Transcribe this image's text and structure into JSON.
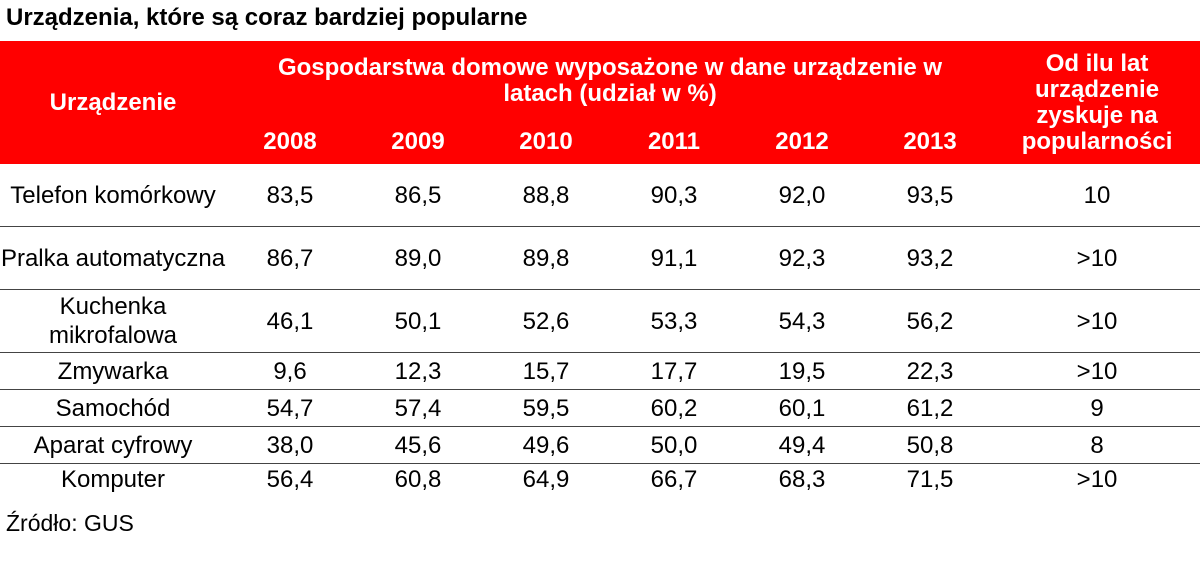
{
  "title": "Urządzenia, które są coraz bardziej popularne",
  "source": "Źródło: GUS",
  "chart_data": {
    "type": "table",
    "title": "Urządzenia, które są coraz bardziej popularne",
    "header": {
      "device": "Urządzenie",
      "share_group": "Gospodarstwa domowe wyposażone w dane urządzenie w latach (udział w %)",
      "years": [
        "2008",
        "2009",
        "2010",
        "2011",
        "2012",
        "2013"
      ],
      "since": "Od ilu lat urządzenie zyskuje na popularności"
    },
    "rows": [
      {
        "device": "Telefon komórkowy",
        "values": [
          "83,5",
          "86,5",
          "88,8",
          "90,3",
          "92,0",
          "93,5"
        ],
        "since": "10"
      },
      {
        "device": "Pralka automatyczna",
        "values": [
          "86,7",
          "89,0",
          "89,8",
          "91,1",
          "92,3",
          "93,2"
        ],
        "since": ">10"
      },
      {
        "device": "Kuchenka mikrofalowa",
        "values": [
          "46,1",
          "50,1",
          "52,6",
          "53,3",
          "54,3",
          "56,2"
        ],
        "since": ">10"
      },
      {
        "device": "Zmywarka",
        "values": [
          "9,6",
          "12,3",
          "15,7",
          "17,7",
          "19,5",
          "22,3"
        ],
        "since": ">10"
      },
      {
        "device": "Samochód",
        "values": [
          "54,7",
          "57,4",
          "59,5",
          "60,2",
          "60,1",
          "61,2"
        ],
        "since": "9"
      },
      {
        "device": "Aparat cyfrowy",
        "values": [
          "38,0",
          "45,6",
          "49,6",
          "50,0",
          "49,4",
          "50,8"
        ],
        "since": "8"
      },
      {
        "device": "Komputer",
        "values": [
          "56,4",
          "60,8",
          "64,9",
          "66,7",
          "68,3",
          "71,5"
        ],
        "since": ">10"
      }
    ]
  }
}
